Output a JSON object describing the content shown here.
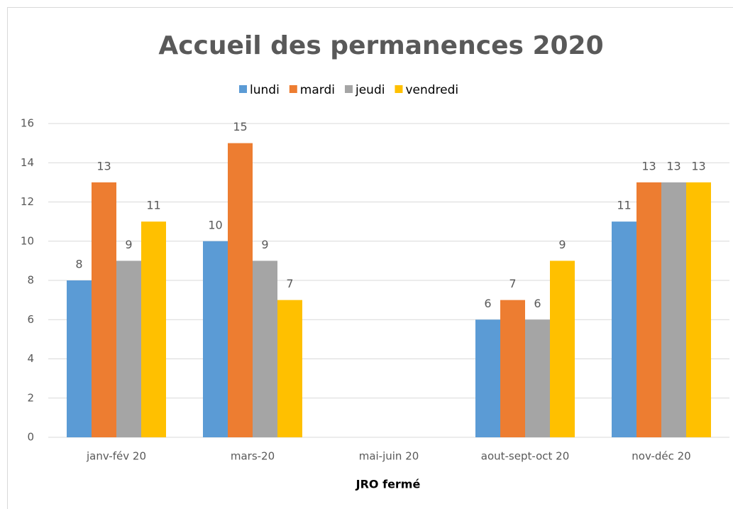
{
  "chart_data": {
    "type": "bar",
    "title": "Accueil des permanences 2020",
    "x_label": "JRO fermé",
    "categories": [
      "janv-fév 20",
      "mars-20",
      "mai-juin 20",
      "aout-sept-oct 20",
      "nov-déc 20"
    ],
    "series": [
      {
        "name": "lundi",
        "color": "#5b9bd5",
        "values": [
          8,
          10,
          null,
          6,
          11
        ]
      },
      {
        "name": "mardi",
        "color": "#ed7d31",
        "values": [
          13,
          15,
          null,
          7,
          13
        ]
      },
      {
        "name": "jeudi",
        "color": "#a5a5a5",
        "values": [
          9,
          9,
          null,
          6,
          13
        ]
      },
      {
        "name": "vendredi",
        "color": "#ffc000",
        "values": [
          11,
          7,
          null,
          9,
          13
        ]
      }
    ],
    "ylim": [
      0,
      16
    ],
    "yticks": [
      0,
      2,
      4,
      6,
      8,
      10,
      12,
      14,
      16
    ],
    "grid": true,
    "legend": "top"
  }
}
